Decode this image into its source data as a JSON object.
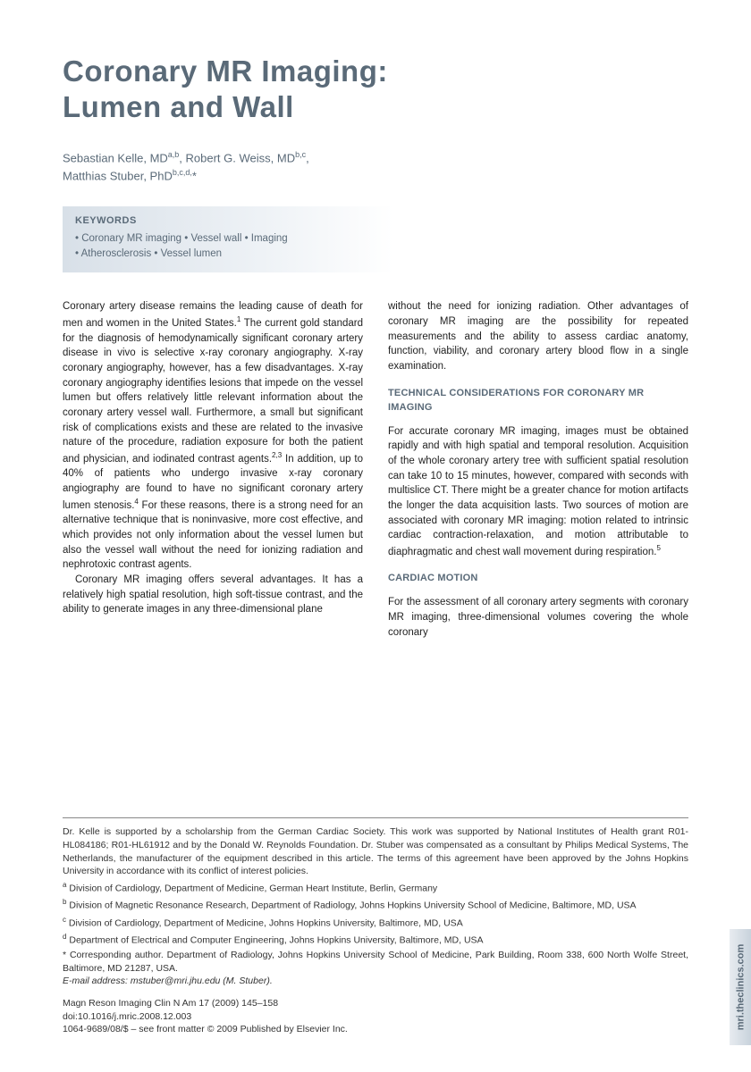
{
  "title_line1": "Coronary MR Imaging:",
  "title_line2": "Lumen and Wall",
  "authors_html": "Sebastian Kelle, MD<sup>a,b</sup>, Robert G. Weiss, MD<sup>b,c</sup>,<br>Matthias Stuber, PhD<sup>b,c,d,</sup>*",
  "keywords": {
    "title": "KEYWORDS",
    "text": "• Coronary MR imaging • Vessel wall • Imaging<br>• Atherosclerosis • Vessel lumen"
  },
  "col1": {
    "p1": "Coronary artery disease remains the leading cause of death for men and women in the United States.<sup class=\"ref\">1</sup> The current gold standard for the diagnosis of hemodynamically significant coronary artery disease in vivo is selective x-ray coronary angiography. X-ray coronary angiography, however, has a few disadvantages. X-ray coronary angiography identifies lesions that impede on the vessel lumen but offers relatively little relevant information about the coronary artery vessel wall. Furthermore, a small but significant risk of complications exists and these are related to the invasive nature of the procedure, radiation exposure for both the patient and physician, and iodinated contrast agents.<sup class=\"ref\">2,3</sup> In addition, up to 40% of patients who undergo invasive x-ray coronary angiography are found to have no significant coronary artery lumen stenosis.<sup class=\"ref\">4</sup> For these reasons, there is a strong need for an alternative technique that is noninvasive, more cost effective, and which provides not only information about the vessel lumen but also the vessel wall without the need for ionizing radiation and nephrotoxic contrast agents.",
    "p2": "Coronary MR imaging offers several advantages. It has a relatively high spatial resolution, high soft-tissue contrast, and the ability to generate images in any three-dimensional plane"
  },
  "col2": {
    "p1": "without the need for ionizing radiation. Other advantages of coronary MR imaging are the possibility for repeated measurements and the ability to assess cardiac anatomy, function, viability, and coronary artery blood flow in a single examination.",
    "h1": "TECHNICAL CONSIDERATIONS FOR CORONARY MR IMAGING",
    "p2": "For accurate coronary MR imaging, images must be obtained rapidly and with high spatial and temporal resolution. Acquisition of the whole coronary artery tree with sufficient spatial resolution can take 10 to 15 minutes, however, compared with seconds with multislice CT. There might be a greater chance for motion artifacts the longer the data acquisition lasts. Two sources of motion are associated with coronary MR imaging: motion related to intrinsic cardiac contraction-relaxation, and motion attributable to diaphragmatic and chest wall movement during respiration.<sup class=\"ref\">5</sup>",
    "h2": "CARDIAC MOTION",
    "p3": "For the assessment of all coronary artery segments with coronary MR imaging, three-dimensional volumes covering the whole coronary"
  },
  "footer": {
    "funding": "Dr. Kelle is supported by a scholarship from the German Cardiac Society. This work was supported by National Institutes of Health grant R01-HL084186; R01-HL61912 and by the Donald W. Reynolds Foundation. Dr. Stuber was compensated as a consultant by Philips Medical Systems, The Netherlands, the manufacturer of the equipment described in this article. The terms of this agreement have been approved by the Johns Hopkins University in accordance with its conflict of interest policies.",
    "affils": [
      "<sup>a</sup> Division of Cardiology, Department of Medicine, German Heart Institute, Berlin, Germany",
      "<sup>b</sup> Division of Magnetic Resonance Research, Department of Radiology, Johns Hopkins University School of Medicine, Baltimore, MD, USA",
      "<sup>c</sup> Division of Cardiology, Department of Medicine, Johns Hopkins University, Baltimore, MD, USA",
      "<sup>d</sup> Department of Electrical and Computer Engineering, Johns Hopkins University, Baltimore, MD, USA",
      "* Corresponding author. Department of Radiology, Johns Hopkins University School of Medicine, Park Building, Room 338, 600 North Wolfe Street, Baltimore, MD 21287, USA."
    ],
    "email": "E-mail address: mstuber@mri.jhu.edu (M. Stuber).",
    "journal": "Magn Reson Imaging Clin N Am 17 (2009) 145–158",
    "doi": "doi:10.1016/j.mric.2008.12.003",
    "copyright": "1064-9689/08/$ – see front matter © 2009 Published by Elsevier Inc."
  },
  "side_tab": "mri.theclinics.com"
}
